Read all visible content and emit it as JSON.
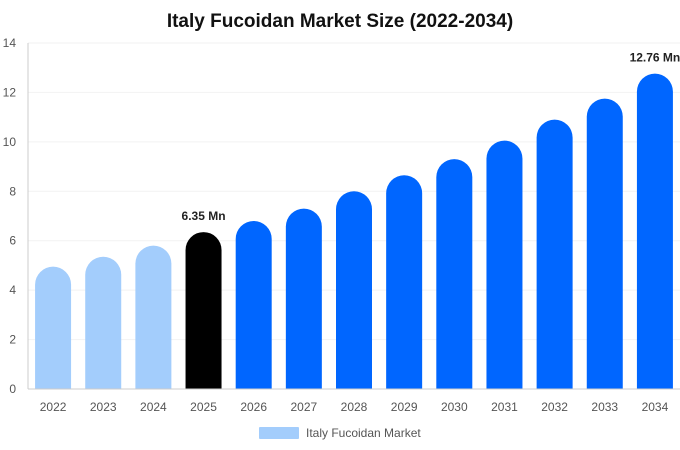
{
  "chart_data": {
    "type": "bar",
    "title": "Italy Fucoidan Market Size (2022-2034)",
    "xlabel": "",
    "ylabel": "",
    "categories": [
      "2022",
      "2023",
      "2024",
      "2025",
      "2026",
      "2027",
      "2028",
      "2029",
      "2030",
      "2031",
      "2032",
      "2033",
      "2034"
    ],
    "series": [
      {
        "name": "Italy Fucoidan Market",
        "values": [
          4.95,
          5.35,
          5.8,
          6.35,
          6.8,
          7.3,
          8.0,
          8.65,
          9.3,
          10.05,
          10.9,
          11.75,
          12.76
        ]
      }
    ],
    "ylim": [
      0,
      14
    ],
    "yticks": [
      0,
      2,
      4,
      6,
      8,
      10,
      12,
      14
    ],
    "data_labels": [
      {
        "index": 3,
        "text": "6.35 Mn"
      },
      {
        "index": 12,
        "text": "12.76 Mn"
      }
    ],
    "colors": {
      "historical": "#a3cdfc",
      "current": "#000000",
      "forecast": "#0066ff",
      "legend_swatch": "#a3cdfc"
    },
    "bar_color_groups": [
      "historical",
      "historical",
      "historical",
      "current",
      "forecast",
      "forecast",
      "forecast",
      "forecast",
      "forecast",
      "forecast",
      "forecast",
      "forecast",
      "forecast"
    ],
    "legend": {
      "position": "bottom",
      "label": "Italy Fucoidan Market"
    },
    "grid": true
  }
}
